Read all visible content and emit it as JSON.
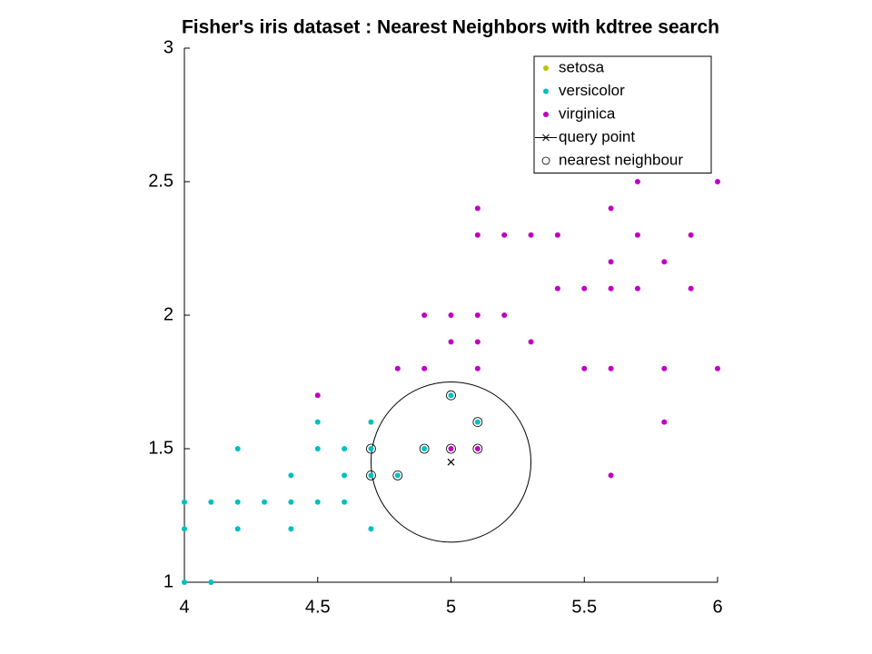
{
  "chart_data": {
    "type": "scatter",
    "title": "Fisher's iris dataset : Nearest Neighbors with kdtree search",
    "xlim": [
      4,
      6
    ],
    "ylim": [
      1,
      3
    ],
    "xticks": [
      4,
      4.5,
      5,
      5.5,
      6
    ],
    "yticks": [
      1,
      1.5,
      2,
      2.5,
      3
    ],
    "legend": "upper right",
    "search_radius": 0.3,
    "series": [
      {
        "name": "setosa",
        "color": "#bfbf00",
        "marker": "dot",
        "x": [],
        "y": []
      },
      {
        "name": "versicolor",
        "color": "#00bfbf",
        "marker": "dot",
        "x": [
          4.0,
          4.0,
          4.0,
          4.1,
          4.1,
          4.2,
          4.2,
          4.2,
          4.3,
          4.4,
          4.4,
          4.4,
          4.5,
          4.5,
          4.5,
          4.6,
          4.6,
          4.6,
          4.7,
          4.7,
          4.7,
          4.7,
          4.8,
          4.9,
          5.0,
          5.1
        ],
        "y": [
          1.3,
          1.2,
          1.0,
          1.3,
          1.0,
          1.5,
          1.3,
          1.2,
          1.3,
          1.4,
          1.3,
          1.2,
          1.6,
          1.5,
          1.3,
          1.5,
          1.4,
          1.3,
          1.6,
          1.5,
          1.4,
          1.2,
          1.4,
          1.5,
          1.7,
          1.6
        ]
      },
      {
        "name": "virginica",
        "color": "#bf00bf",
        "marker": "dot",
        "x": [
          4.5,
          4.8,
          4.9,
          4.9,
          5.0,
          5.0,
          5.0,
          5.1,
          5.1,
          5.1,
          5.1,
          5.1,
          5.1,
          5.2,
          5.2,
          5.3,
          5.3,
          5.4,
          5.4,
          5.5,
          5.5,
          5.6,
          5.6,
          5.6,
          5.6,
          5.6,
          5.7,
          5.7,
          5.7,
          5.8,
          5.8,
          5.8,
          5.9,
          5.9,
          6.0,
          6.0
        ],
        "y": [
          1.7,
          1.8,
          1.8,
          2.0,
          2.0,
          1.9,
          1.5,
          2.4,
          2.3,
          2.0,
          1.9,
          1.8,
          1.5,
          2.3,
          2.0,
          2.3,
          1.9,
          2.3,
          2.1,
          2.1,
          1.8,
          2.4,
          2.2,
          2.1,
          1.8,
          1.4,
          2.5,
          2.3,
          2.1,
          2.2,
          1.8,
          1.6,
          2.3,
          2.1,
          2.5,
          1.8
        ]
      },
      {
        "name": "query point",
        "color": "#000000",
        "marker": "x",
        "x": [
          5.0
        ],
        "y": [
          1.45
        ]
      },
      {
        "name": "nearest neighbour",
        "color": "#000000",
        "marker": "circle",
        "x": [
          4.7,
          4.7,
          4.8,
          4.9,
          5.0,
          5.0,
          5.1,
          5.1
        ],
        "y": [
          1.5,
          1.4,
          1.4,
          1.5,
          1.7,
          1.5,
          1.6,
          1.5
        ]
      }
    ]
  }
}
